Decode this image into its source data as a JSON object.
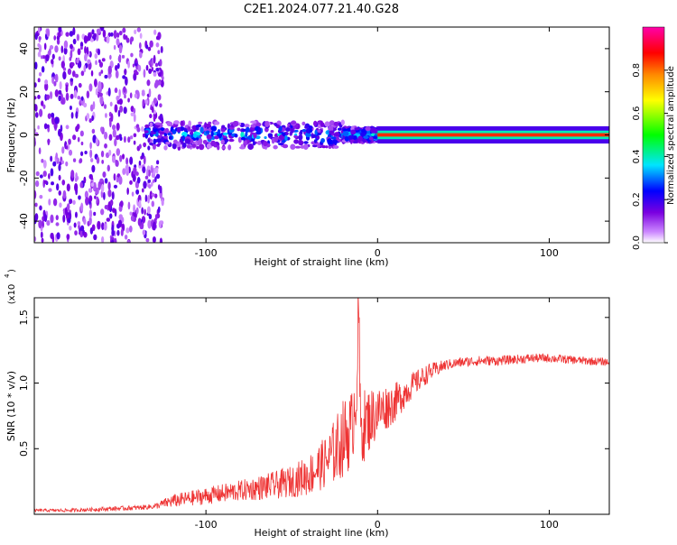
{
  "title": "C2E1.2024.077.21.40.G28",
  "chart_data": [
    {
      "type": "heatmap",
      "xlabel": "Height of straight line (km)",
      "ylabel": "Frequency (Hz)",
      "xlim": [
        -200,
        135
      ],
      "ylim": [
        -50,
        50
      ],
      "xticks": [
        -100,
        0,
        100
      ],
      "yticks": [
        -40,
        -20,
        0,
        20,
        40
      ],
      "colorbar": {
        "label": "Normalized spectral amplitude",
        "range": [
          0,
          1
        ],
        "ticks": [
          "0.0",
          "0.2",
          "0.4",
          "0.6",
          "0.8"
        ],
        "colors": [
          "#ffffff",
          "#cc88ff",
          "#7a00e0",
          "#0000ff",
          "#00e5ff",
          "#00ff00",
          "#ffff00",
          "#ff8800",
          "#ff0000",
          "#ff00aa"
        ]
      },
      "regions": [
        {
          "x": [
            -200,
            -125
          ],
          "freq_spread": 50,
          "amplitude": 0.1,
          "description": "scattered"
        },
        {
          "x": [
            -135,
            -20
          ],
          "freq_spread": 6,
          "amplitude": 0.3
        },
        {
          "x": [
            -20,
            0
          ],
          "freq_spread": 3,
          "amplitude": 0.4
        },
        {
          "x": [
            0,
            135
          ],
          "freq_spread": 1,
          "amplitude": 0.85
        }
      ],
      "series": [
        {
          "values": [
            [
              -200,
              0
            ],
            [
              0,
              0
            ],
            [
              135,
              0
            ]
          ]
        }
      ]
    },
    {
      "type": "line",
      "xlabel": "Height of straight line (km)",
      "ylabel": "SNR (10 * v/v)",
      "y_multiplier_label": "(x10",
      "y_multiplier_exp": "4",
      "xlim": [
        -200,
        135
      ],
      "ylim": [
        0,
        1.65
      ],
      "xticks": [
        -100,
        0,
        100
      ],
      "yticks": [
        "0.5",
        "1.0",
        "1.5"
      ],
      "color": "#ee3333",
      "series": [
        {
          "values": [
            [
              -200,
              0.03
            ],
            [
              -180,
              0.03
            ],
            [
              -160,
              0.04
            ],
            [
              -140,
              0.05
            ],
            [
              -130,
              0.06
            ],
            [
              -120,
              0.1
            ],
            [
              -110,
              0.12
            ],
            [
              -100,
              0.14
            ],
            [
              -90,
              0.16
            ],
            [
              -80,
              0.18
            ],
            [
              -70,
              0.2
            ],
            [
              -60,
              0.22
            ],
            [
              -50,
              0.25
            ],
            [
              -40,
              0.3
            ],
            [
              -30,
              0.4
            ],
            [
              -25,
              0.48
            ],
            [
              -20,
              0.58
            ],
            [
              -15,
              0.65
            ],
            [
              -12,
              1.0
            ],
            [
              -11,
              1.65
            ],
            [
              -10,
              0.65
            ],
            [
              -5,
              0.72
            ],
            [
              0,
              0.78
            ],
            [
              10,
              0.85
            ],
            [
              20,
              0.98
            ],
            [
              30,
              1.08
            ],
            [
              40,
              1.14
            ],
            [
              50,
              1.16
            ],
            [
              60,
              1.17
            ],
            [
              70,
              1.17
            ],
            [
              80,
              1.18
            ],
            [
              90,
              1.19
            ],
            [
              100,
              1.19
            ],
            [
              110,
              1.18
            ],
            [
              120,
              1.17
            ],
            [
              135,
              1.16
            ]
          ],
          "noise": [
            [
              -200,
              0.01
            ],
            [
              -130,
              0.02
            ],
            [
              -120,
              0.05
            ],
            [
              -80,
              0.08
            ],
            [
              -50,
              0.12
            ],
            [
              -30,
              0.2
            ],
            [
              -20,
              0.3
            ],
            [
              -10,
              0.3
            ],
            [
              0,
              0.2
            ],
            [
              20,
              0.1
            ],
            [
              40,
              0.04
            ],
            [
              135,
              0.03
            ]
          ]
        }
      ]
    }
  ]
}
